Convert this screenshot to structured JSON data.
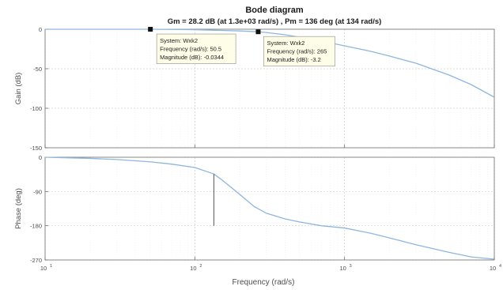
{
  "chart_data": {
    "type": "line",
    "title": "Bode diagram",
    "subtitle": "Gm = 28.2 dB (at 1.3e+03 rad/s) ,  Pm = 136 deg (at 134 rad/s)",
    "xlabel": "Frequency   (rad/s)",
    "xscale": "log",
    "xlim": [
      10,
      10000
    ],
    "x_ticks": [
      10,
      100,
      1000,
      10000
    ],
    "x_tick_labels": [
      "10",
      "10",
      "10",
      "10"
    ],
    "x_tick_exponents": [
      "1",
      "2",
      "3",
      "4"
    ],
    "grid": true,
    "line_color": "#8fb6dd",
    "panels": [
      {
        "name": "magnitude",
        "ylabel_main": "Gain",
        "ylabel_unit": "(dB)",
        "ylim": [
          -150,
          0
        ],
        "y_ticks": [
          0,
          -50,
          -100,
          -150
        ],
        "y_tick_labels": [
          "0",
          "-50",
          "-100",
          "-150"
        ],
        "series": [
          {
            "x": [
              10,
              20,
              30,
              50.5,
              80,
              100,
              150,
              200,
              265,
              300,
              400,
              500,
              700,
              1000,
              1500,
              2000,
              3000,
              5000,
              7000,
              10000
            ],
            "y": [
              0,
              0,
              0,
              -0.0344,
              -0.3,
              -0.6,
              -1.5,
              -2.2,
              -3.2,
              -4.1,
              -7,
              -10,
              -15,
              -21,
              -28,
              -34,
              -43,
              -58,
              -70,
              -86
            ]
          }
        ]
      },
      {
        "name": "phase",
        "ylabel_main": "Phase",
        "ylabel_unit": "(deg)",
        "ylim": [
          -270,
          0
        ],
        "y_ticks": [
          0,
          -90,
          -180,
          -270
        ],
        "y_tick_labels": [
          "0",
          "-90",
          "-180",
          "-270"
        ],
        "series": [
          {
            "x": [
              10,
              20,
              30,
              50,
              70,
              100,
              134,
              150,
              200,
              250,
              300,
              400,
              500,
              700,
              1000,
              1300,
              1500,
              2000,
              3000,
              5000,
              7000,
              10000
            ],
            "y": [
              0,
              -3,
              -6,
              -12,
              -18,
              -27,
              -44,
              -58,
              -98,
              -130,
              -147,
              -162,
              -170,
              -180,
              -186,
              -195,
              -200,
              -212,
              -230,
              -250,
              -262,
              -268
            ]
          }
        ],
        "markers": [
          {
            "x": 134,
            "y_from": -44,
            "y_to": -180
          }
        ]
      }
    ],
    "datatips": [
      {
        "panel": "magnitude",
        "x": 50.5,
        "y": -0.0344,
        "lines": [
          "System: Wxk2",
          "Frequency (rad/s): 50.5",
          "Magnitude (dB): -0.0344"
        ]
      },
      {
        "panel": "magnitude",
        "x": 265,
        "y": -3.2,
        "lines": [
          "System: Wxk2",
          "Frequency (rad/s): 265",
          "Magnitude (dB): -3.2"
        ]
      }
    ]
  }
}
